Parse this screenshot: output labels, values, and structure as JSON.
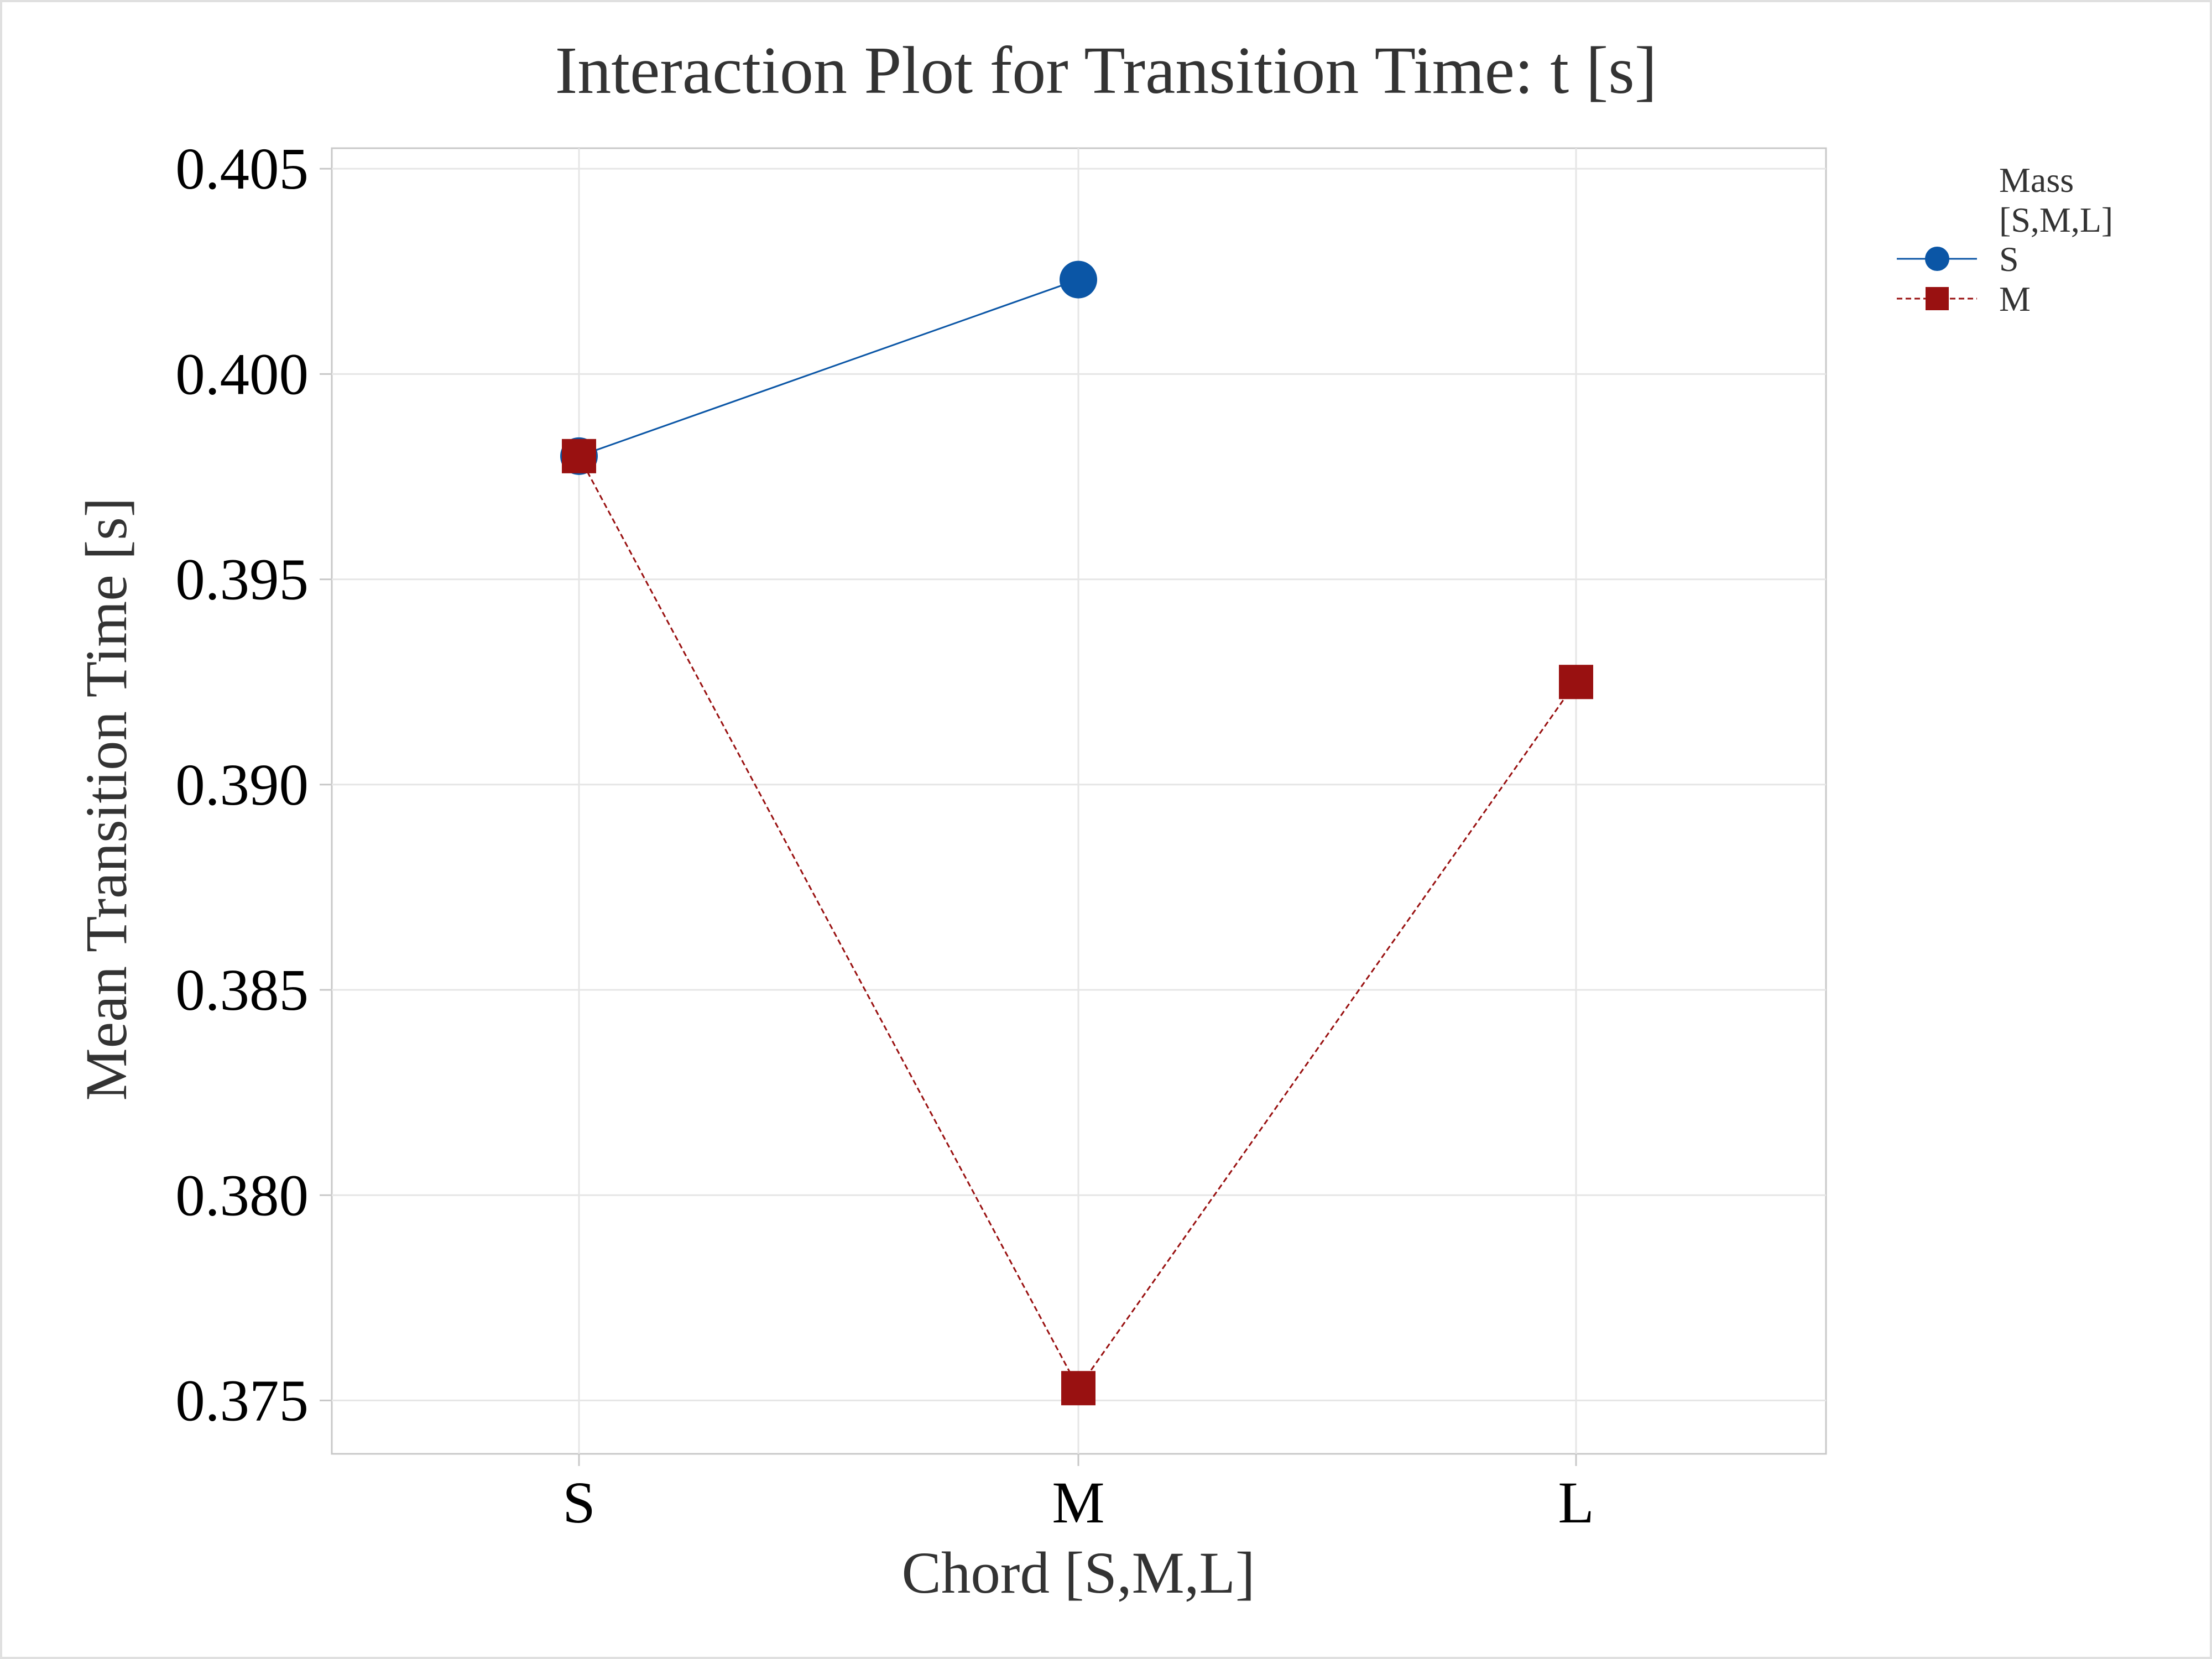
{
  "chart_data": {
    "type": "line",
    "title": "Interaction Plot for Transition Time: t [s]",
    "xlabel": "Chord [S,M,L]",
    "ylabel": "Mean Transition Time [s]",
    "categories": [
      "S",
      "M",
      "L"
    ],
    "ylim": [
      0.3737,
      0.4055
    ],
    "yticks": [
      0.375,
      0.38,
      0.385,
      0.39,
      0.395,
      0.4,
      0.405
    ],
    "ytick_labels": [
      "0.375",
      "0.380",
      "0.385",
      "0.390",
      "0.395",
      "0.400",
      "0.405"
    ],
    "grid": true,
    "legend": {
      "title_lines": [
        "Mass",
        "[S,M,L]"
      ],
      "placement": "right-top"
    },
    "series": [
      {
        "name": "S",
        "values": [
          0.398,
          0.4023,
          null
        ],
        "color": "#0b56a6",
        "marker": "circle",
        "line_style": "solid"
      },
      {
        "name": "M",
        "values": [
          0.398,
          0.3753,
          0.3925
        ],
        "color": "#991111",
        "marker": "square",
        "line_style": "dashed"
      }
    ]
  }
}
